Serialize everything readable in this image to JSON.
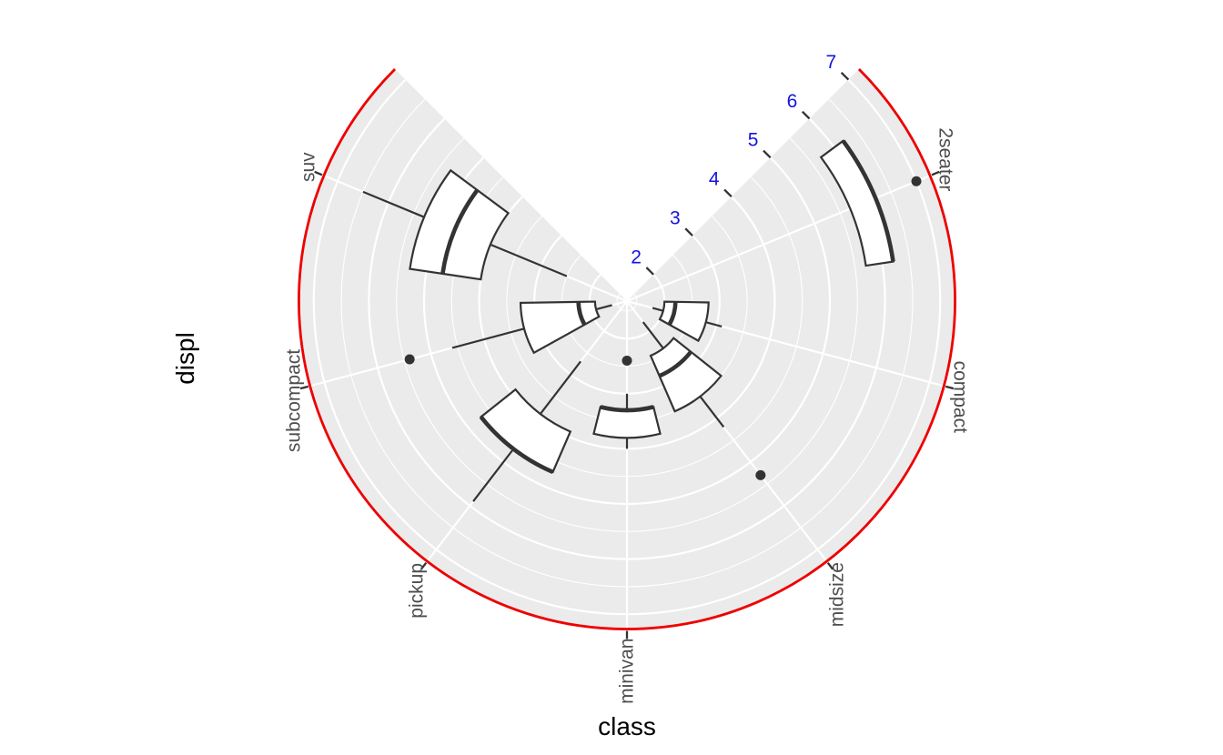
{
  "figure": {
    "xlabel": "class",
    "ylabel": "displ"
  },
  "chart_data": {
    "type": "boxplot",
    "coordinate_system": "polar",
    "title": "",
    "xlabel": "class",
    "ylabel": "displ",
    "categories": [
      "2seater",
      "compact",
      "midsize",
      "minivan",
      "pickup",
      "subcompact",
      "suv"
    ],
    "series": [
      {
        "category": "2seater",
        "lower": 5.7,
        "q1": 5.7,
        "median": 6.2,
        "q3": 6.2,
        "upper": 6.2,
        "outliers": [
          7.0
        ]
      },
      {
        "category": "compact",
        "lower": 1.8,
        "q1": 2.0,
        "median": 2.2,
        "q3": 2.8,
        "upper": 3.1,
        "outliers": []
      },
      {
        "category": "midsize",
        "lower": 1.8,
        "q1": 2.4,
        "median": 2.8,
        "q3": 3.5,
        "upper": 4.2,
        "outliers": [
          5.3
        ]
      },
      {
        "category": "minivan",
        "lower": 3.0,
        "q1": 3.3,
        "median": 3.3,
        "q3": 3.8,
        "upper": 4.0,
        "outliers": [
          2.4
        ]
      },
      {
        "category": "pickup",
        "lower": 2.7,
        "q1": 3.9,
        "median": 4.7,
        "q3": 4.7,
        "upper": 5.9,
        "outliers": []
      },
      {
        "category": "subcompact",
        "lower": 1.6,
        "q1": 1.9,
        "median": 2.2,
        "q3": 3.25,
        "upper": 4.6,
        "outliers": [
          5.4
        ]
      },
      {
        "category": "suv",
        "lower": 2.5,
        "q1": 4.0,
        "median": 4.7,
        "q3": 5.3,
        "upper": 6.5,
        "outliers": []
      }
    ],
    "r_axis": {
      "ticks": [
        2,
        3,
        4,
        5,
        6,
        7
      ],
      "minor_ticks": [
        1.5,
        2.5,
        3.5,
        4.5,
        5.5,
        6.5
      ],
      "range": [
        1.32,
        7.27
      ],
      "tick_label_color": "#1414DD"
    },
    "theta_axis": {
      "start_deg": 45,
      "end_deg": 315,
      "label_color": "#4D4D4D"
    },
    "legend": "none",
    "grid": "on",
    "colors": {
      "background": "#FFFFFF",
      "panel": "#EBEBEB",
      "grid": "#FFFFFF",
      "box_fill": "#FFFFFF",
      "box_stroke": "#333333",
      "outline_arc": "#EE0000",
      "axis_title": "#000000",
      "tick_mark": "#333333"
    }
  }
}
